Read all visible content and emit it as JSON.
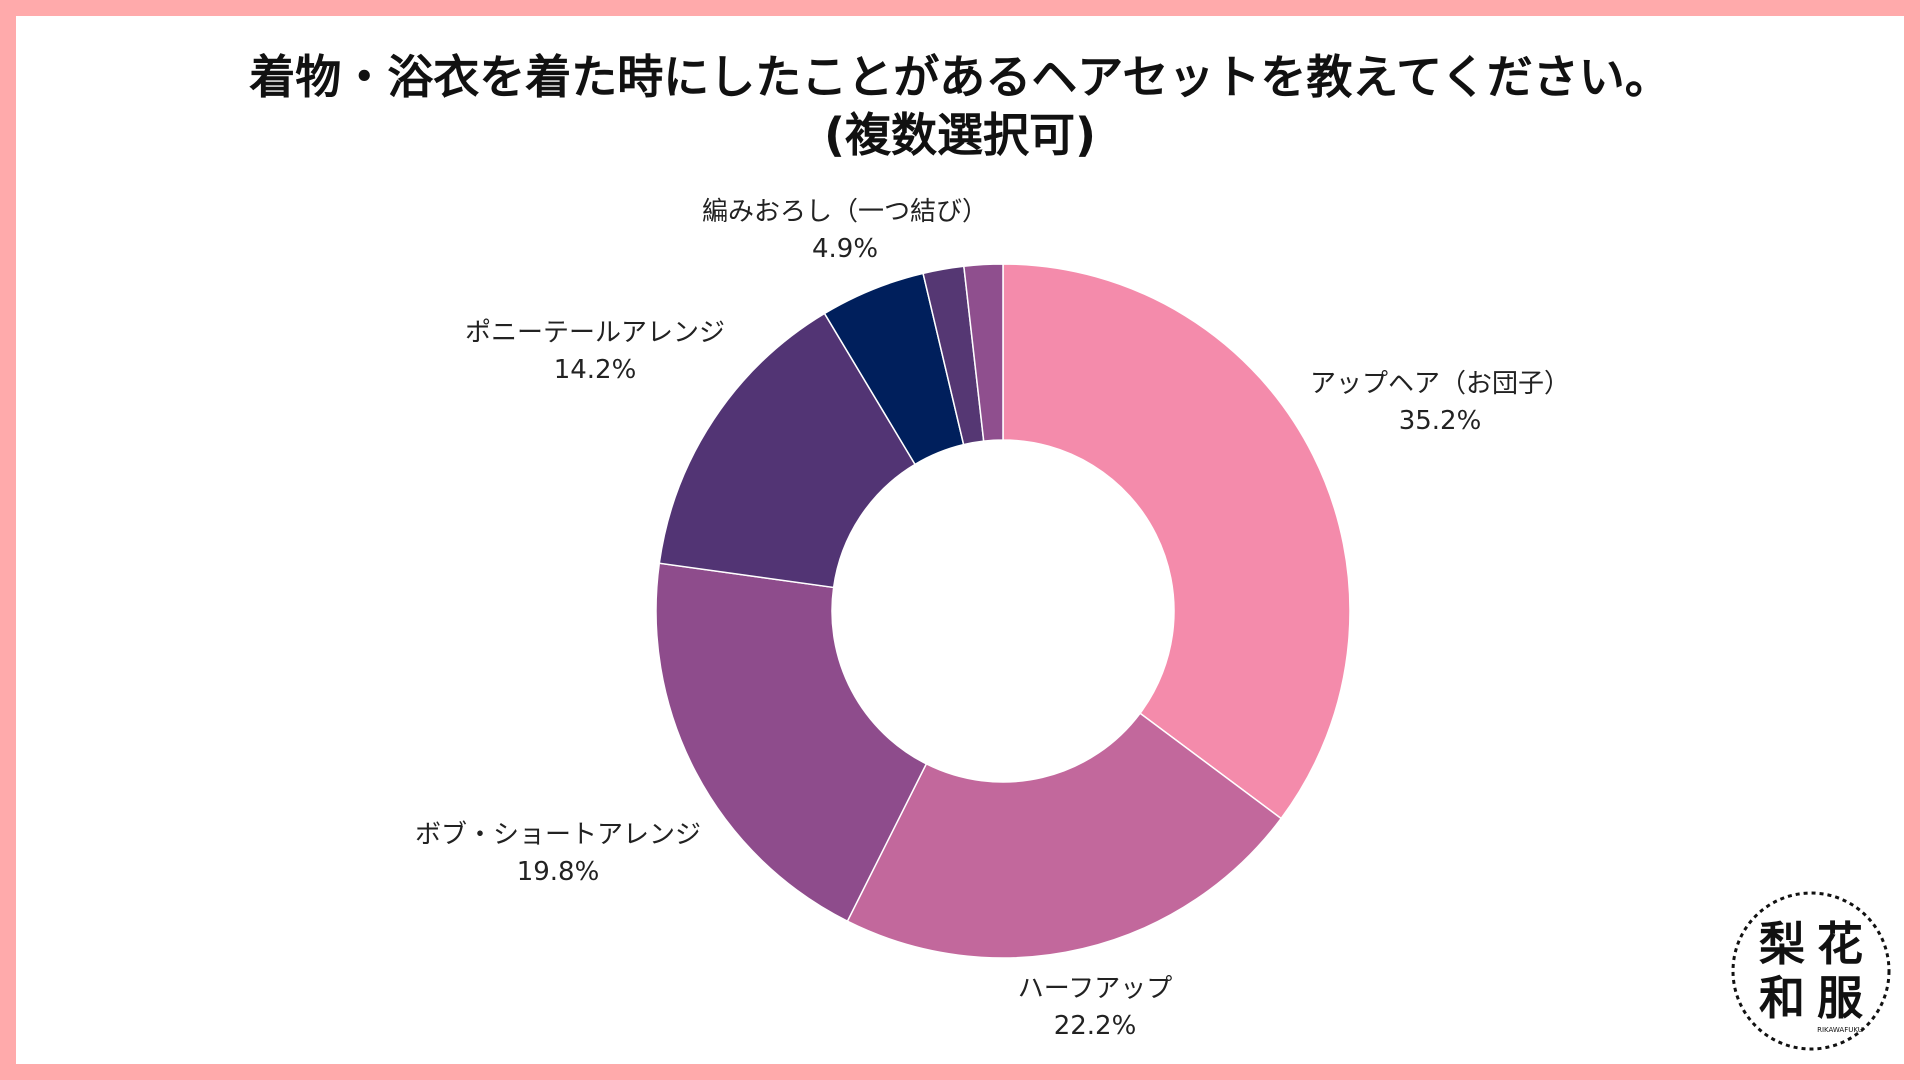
{
  "title": {
    "line1": "着物・浴衣を着た時にしたことがあるヘアセットを教えてください。",
    "line2": "(複数選択可)"
  },
  "chart_data": {
    "type": "pie",
    "variant": "donut",
    "title": "着物・浴衣を着た時にしたことがあるヘアセットを教えてください。(複数選択可)",
    "start": "12 o'clock, clockwise",
    "slices": [
      {
        "label": "アップヘア（お団子）",
        "value": 35.2,
        "value_label": "35.2%",
        "color": "#f48bab",
        "labeled": true
      },
      {
        "label": "ハーフアップ",
        "value": 22.2,
        "value_label": "22.2%",
        "color": "#c2689c",
        "labeled": true
      },
      {
        "label": "ボブ・ショートアレンジ",
        "value": 19.8,
        "value_label": "19.8%",
        "color": "#8e4c8c",
        "labeled": true
      },
      {
        "label": "ポニーテールアレンジ",
        "value": 14.2,
        "value_label": "14.2%",
        "color": "#523474",
        "labeled": true
      },
      {
        "label": "編みおろし（一つ結び）",
        "value": 4.9,
        "value_label": "4.9%",
        "color": "#001f5c",
        "labeled": true
      },
      {
        "label": "",
        "value": 1.9,
        "value_label": "",
        "color": "#553773",
        "labeled": false
      },
      {
        "label": "",
        "value": 1.8,
        "value_label": "",
        "color": "#8f4f8e",
        "labeled": false
      }
    ]
  },
  "logo": {
    "characters": [
      "梨",
      "花",
      "和",
      "服"
    ],
    "small_text": "RIKAWAFUKU",
    "color": "#111111"
  }
}
